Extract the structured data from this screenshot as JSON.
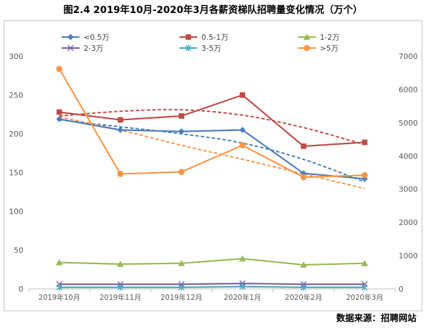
{
  "title": "图2.4   2019年10月-2020年3月各薪资梯队招聘量变化情况（万个）",
  "source": "数据来源：招聘网站",
  "chart_data": {
    "type": "line",
    "categories": [
      "2019年10月",
      "2019年11月",
      "2019年12月",
      "2020年1月",
      "2020年2月",
      "2020年3月"
    ],
    "y_left": {
      "min": 0,
      "max": 300,
      "ticks": [
        0,
        50,
        100,
        150,
        200,
        250,
        300
      ]
    },
    "y_right": {
      "min": 0,
      "max": 7000,
      "ticks": [
        0,
        1000,
        2000,
        3000,
        4000,
        5000,
        6000,
        7000
      ]
    },
    "series": [
      {
        "name": "<0.5万",
        "axis": "left",
        "color": "#4a7ebb",
        "marker": "diamond",
        "values": [
          219,
          205,
          203,
          205,
          149,
          142
        ],
        "trendline": [
          218,
          209,
          200,
          188,
          167,
          138
        ]
      },
      {
        "name": "0.5-1万",
        "axis": "left",
        "color": "#be4b48",
        "marker": "square",
        "values": [
          228,
          218,
          223,
          250,
          184,
          189
        ],
        "trendline": [
          223,
          229,
          231,
          224,
          208,
          186
        ]
      },
      {
        "name": "1-2万",
        "axis": "left",
        "color": "#98b954",
        "marker": "triangle",
        "values": [
          34,
          32,
          33,
          39,
          31,
          33
        ]
      },
      {
        "name": "2-3万",
        "axis": "left",
        "color": "#7d60a0",
        "marker": "x",
        "values": [
          6,
          6,
          6,
          7,
          6,
          6
        ]
      },
      {
        "name": "3-5万",
        "axis": "left",
        "color": "#46aac5",
        "marker": "star",
        "values": [
          2,
          2,
          2,
          3,
          2,
          2
        ]
      },
      {
        "name": ">5万",
        "axis": "right",
        "color": "#f79646",
        "marker": "circle",
        "values": [
          6620,
          3460,
          3520,
          4320,
          3360,
          3420
        ],
        "trendline": [
          5180,
          4780,
          4320,
          3900,
          3460,
          3020
        ]
      }
    ]
  }
}
